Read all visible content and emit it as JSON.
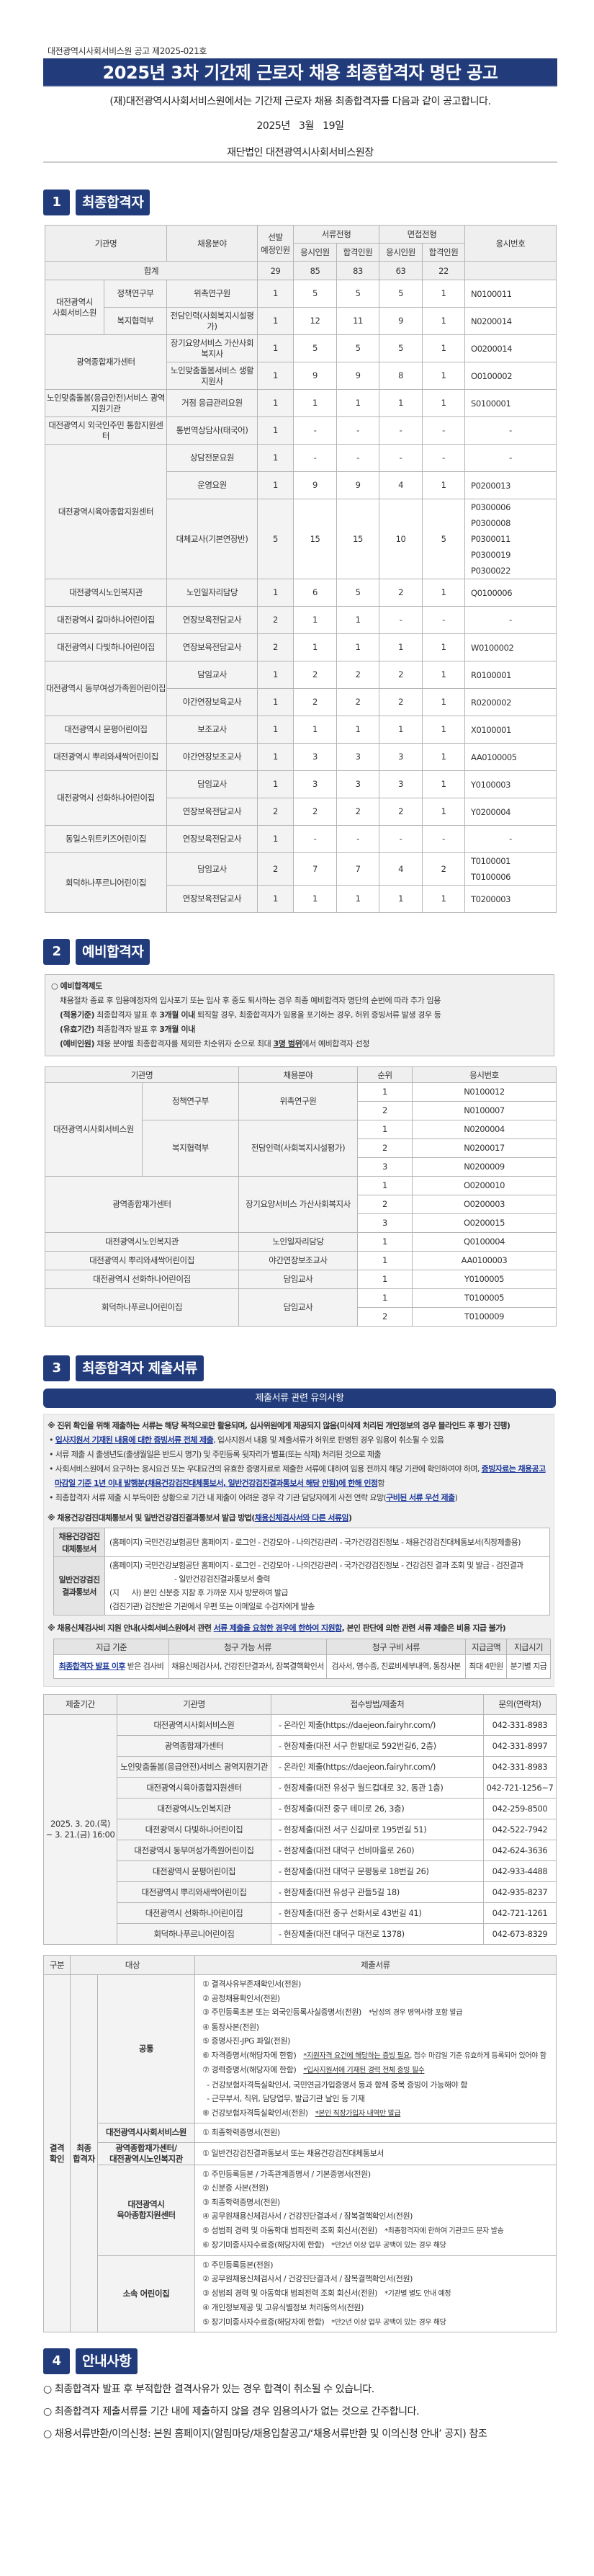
{
  "header": {
    "notice_number": "대전광역시사회서비스원 공고 제2025-021호",
    "title": "2025년 3차 기간제 근로자 채용 최종합격자 명단 공고",
    "intro": "(재)대전광역시사회서비스원에서는 기간제 근로자 채용 최종합격자를 다음과 같이 공고합니다.",
    "date": "2025년   3월   19일",
    "issuer": "재단법인 대전광역시사회서비스원장"
  },
  "sections": [
    {
      "number": "1",
      "title": "최종합격자"
    },
    {
      "number": "2",
      "title": "예비합격자"
    },
    {
      "number": "3",
      "title": "최종합격자 제출서류"
    },
    {
      "number": "4",
      "title": "안내사항"
    }
  ],
  "final": {
    "header": {
      "org": "기관명",
      "field": "채용분야",
      "planned": "선발\n예정인원",
      "doc_stage": "서류전형",
      "int_stage": "면접전형",
      "applied": "응시인원",
      "passed": "합격인원",
      "ids": "응시번호"
    },
    "total": {
      "label": "합계",
      "values": [
        "29",
        "85",
        "83",
        "63",
        "22"
      ]
    },
    "groups": [
      {
        "org": "대전광역시\n사회서비스원",
        "depts": [
          {
            "dept": "정책연구부",
            "rows": [
              {
                "field": "위촉연구원",
                "values": [
                  "1",
                  "5",
                  "5",
                  "5",
                  "1"
                ],
                "ids": "N0100011"
              }
            ]
          },
          {
            "dept": "복지협력부",
            "rows": [
              {
                "field": "전담인력(사회복지시설평가)",
                "values": [
                  "1",
                  "12",
                  "11",
                  "9",
                  "1"
                ],
                "ids": "N0200014"
              }
            ]
          }
        ]
      },
      {
        "org": "광역종합재가센터",
        "rows": [
          {
            "field": "장기요양서비스 가산사회복지사",
            "values": [
              "1",
              "5",
              "5",
              "5",
              "1"
            ],
            "ids": "O0200014"
          },
          {
            "field": "노인맞춤돌봄서비스 생활지원사",
            "values": [
              "1",
              "9",
              "9",
              "8",
              "1"
            ],
            "ids": "O0100002"
          }
        ]
      },
      {
        "org": "노인맞춤돌봄(응급안전)서비스 광역지원기관",
        "rows": [
          {
            "field": "거점 응급관리요원",
            "values": [
              "1",
              "1",
              "1",
              "1",
              "1"
            ],
            "ids": "S0100001"
          }
        ]
      },
      {
        "org": "대전광역시 외국인주민 통합지원센터",
        "rows": [
          {
            "field": "통번역상담사(태국어)",
            "values": [
              "1",
              "-",
              "-",
              "-",
              "-"
            ],
            "ids": "-"
          }
        ]
      },
      {
        "org": "대전광역시육아종합지원센터",
        "rows": [
          {
            "field": "상담전문요원",
            "values": [
              "1",
              "-",
              "-",
              "-",
              "-"
            ],
            "ids": "-"
          },
          {
            "field": "운영요원",
            "values": [
              "1",
              "9",
              "9",
              "4",
              "1"
            ],
            "ids": "P0200013"
          },
          {
            "field": "대체교사(기본연장반)",
            "values": [
              "5",
              "15",
              "15",
              "10",
              "5"
            ],
            "ids": "P0300006 P0300008 P0300011 P0300019 P0300022"
          }
        ]
      },
      {
        "org": "대전광역시노인복지관",
        "rows": [
          {
            "field": "노인일자리담당",
            "values": [
              "1",
              "6",
              "5",
              "2",
              "1"
            ],
            "ids": "Q0100006"
          }
        ]
      },
      {
        "org": "대전광역시 갈마하나어린이집",
        "rows": [
          {
            "field": "연장보육전담교사",
            "values": [
              "2",
              "1",
              "1",
              "-",
              "-"
            ],
            "ids": "-"
          }
        ]
      },
      {
        "org": "대전광역시 다빛하나어린이집",
        "rows": [
          {
            "field": "연장보육전담교사",
            "values": [
              "2",
              "1",
              "1",
              "1",
              "1"
            ],
            "ids": "W0100002"
          }
        ]
      },
      {
        "org": "대전광역시 동부여성가족원어린이집",
        "rows": [
          {
            "field": "담임교사",
            "values": [
              "1",
              "2",
              "2",
              "2",
              "1"
            ],
            "ids": "R0100001"
          },
          {
            "field": "야간연장보육교사",
            "values": [
              "1",
              "2",
              "2",
              "2",
              "1"
            ],
            "ids": "R0200002"
          }
        ]
      },
      {
        "org": "대전광역시 문평어린이집",
        "rows": [
          {
            "field": "보조교사",
            "values": [
              "1",
              "1",
              "1",
              "1",
              "1"
            ],
            "ids": "X0100001"
          }
        ]
      },
      {
        "org": "대전광역시 뿌리와새싹어린이집",
        "rows": [
          {
            "field": "야간연장보조교사",
            "values": [
              "1",
              "3",
              "3",
              "3",
              "1"
            ],
            "ids": "AA0100005"
          }
        ]
      },
      {
        "org": "대전광역시 선화하나어린이집",
        "rows": [
          {
            "field": "담임교사",
            "values": [
              "1",
              "3",
              "3",
              "3",
              "1"
            ],
            "ids": "Y0100003"
          },
          {
            "field": "연장보육전담교사",
            "values": [
              "2",
              "2",
              "2",
              "2",
              "1"
            ],
            "ids": "Y0200004"
          }
        ]
      },
      {
        "org": "동일스위트키즈어린이집",
        "rows": [
          {
            "field": "연장보육전담교사",
            "values": [
              "1",
              "-",
              "-",
              "-",
              "-"
            ],
            "ids": "-"
          }
        ]
      },
      {
        "org": "회덕하나푸르니어린이집",
        "rows": [
          {
            "field": "담임교사",
            "values": [
              "2",
              "7",
              "7",
              "4",
              "2"
            ],
            "ids": "T0100001 T0100006"
          },
          {
            "field": "연장보육전담교사",
            "values": [
              "1",
              "1",
              "1",
              "1",
              "1"
            ],
            "ids": "T0200003"
          }
        ]
      }
    ]
  },
  "reserve_notice": {
    "title": "○ 예비합격제도",
    "line1": "채용절차 종료 후 임용예정자의 입사포기 또는 입사 후 중도 퇴사하는 경우 최종 예비합격자 명단의 순번에 따라 추가 임용",
    "l2_label": "(적용기준)",
    "l2_a": " 최종합격자 발표 후 ",
    "l2_bold": "3개월 이내",
    "l2_b": " 퇴직할 경우, 최종합격자가 임용을 포기하는 경우, 허위 증빙서류 발생 경우 등",
    "l3_label": "(유효기간)",
    "l3_a": " 최종합격자 발표 후 ",
    "l3_bold": "3개월 이내",
    "l4_label": "(예비인원)",
    "l4_a": " 채용 분야별 최종합격자를 제외한 차순위자 순으로 최대 ",
    "l4_bold": "3명 범위",
    "l4_b": "에서 예비합격자 선정"
  },
  "reserve": {
    "header": {
      "org": "기관명",
      "field": "채용분야",
      "rank": "순위",
      "id": "응시번호"
    },
    "groups": [
      {
        "org": "대전광역시사회서비스원",
        "depts": [
          {
            "dept": "정책연구부",
            "field": "위촉연구원",
            "entries": [
              {
                "rank": "1",
                "id": "N0100012"
              },
              {
                "rank": "2",
                "id": "N0100007"
              }
            ]
          },
          {
            "dept": "복지협력부",
            "field": "전담인력(사회복지시설평가)",
            "entries": [
              {
                "rank": "1",
                "id": "N0200004"
              },
              {
                "rank": "2",
                "id": "N0200017"
              },
              {
                "rank": "3",
                "id": "N0200009"
              }
            ]
          }
        ]
      },
      {
        "org": "광역종합재가센터",
        "field": "장기요양서비스 가산사회복지사",
        "entries": [
          {
            "rank": "1",
            "id": "O0200010"
          },
          {
            "rank": "2",
            "id": "O0200003"
          },
          {
            "rank": "3",
            "id": "O0200015"
          }
        ]
      },
      {
        "org": "대전광역시노인복지관",
        "field": "노인일자리담당",
        "entries": [
          {
            "rank": "1",
            "id": "Q0100004"
          }
        ]
      },
      {
        "org": "대전광역시 뿌리와새싹어린이집",
        "field": "야간연장보조교사",
        "entries": [
          {
            "rank": "1",
            "id": "AA0100003"
          }
        ]
      },
      {
        "org": "대전광역시 선화하나어린이집",
        "field": "담임교사",
        "entries": [
          {
            "rank": "1",
            "id": "Y0100005"
          }
        ]
      },
      {
        "org": "회덕하나푸르니어린이집",
        "field": "담임교사",
        "entries": [
          {
            "rank": "1",
            "id": "T0100005"
          },
          {
            "rank": "2",
            "id": "T0100009"
          }
        ]
      }
    ]
  },
  "docs_notice": {
    "bar_title": "제출서류 관련 유의사항",
    "p1": "※ 진위 확인을 위해 제출하는 서류는 해당 목적으로만 활용되며, 심사위원에게 제공되지 않음(미삭제 처리된 개인정보의 경우 블라인드 후 평가 진행)",
    "b1_link": "입사지원서 기재된 내용에 대한 증빙서류 전체 제출",
    "b1_rest": ", 입사지원서 내용 및 제출서류가 허위로 판명된 경우 임용이 취소될 수 있음",
    "b2": "서류 제출 시 출생년도(출생월일은 반드시 명기) 및 주민등록 뒷자리가 별표(또는 삭제) 처리된 것으로 제출",
    "b3_a": "사회서비스원에서 요구하는 응시요건 또는 우대요건의 유효한 증명자료로 제출한 서류에 대하여 임용 전까지 해당 기관에 확인하여야 하며, ",
    "b3_link": "증빙자료는 채용공고 마감일 기준 1년 이내 발행분(채용건강검진대체통보서, 일반건강검진결과통보서 해당 안됨)에 한해 인정",
    "b3_b": "함",
    "b4_a": "최종합격자 서류 제출 시 부득이한 상황으로 기간 내 제출이 어려운 경우 각 기관 담당자에게 사전 연락 요망(",
    "b4_link": "구비된 서류 우선 제출",
    "b4_b": ")",
    "health_title_a": "※ 채용건강검진대체통보서 및 일반건강검진결과통보서 발급 방법(",
    "health_title_link": "채용신체검사서와 다른 서류임",
    "health_title_b": ")",
    "health_rows": [
      {
        "label": "채용건강검진\n대체통보서",
        "lines": [
          "(홈페이지) 국민건강보험공단 홈페이지 - 로그인 - 건강모아 - 나의건강관리 - 국가건강검진정보 - 채용건강검진대체통보서(직장제출용)"
        ]
      },
      {
        "label": "일반건강검진\n결과통보서",
        "lines": [
          "(홈페이지) 국민건강보험공단 홈페이지 - 로그인 - 건강모아 - 나의건강관리 - 국가건강검진정보 - 건강검진 결과 조회 및 발급 - 검진결과",
          "- 일반건강검진결과통보서 출력",
          "(지      사) 본인 신분증 지참 후 가까운 지사 방문하여 발급",
          "(검진기관) 검진받은 기관에서 우편 또는 이메일로 수검자에게 발송"
        ]
      }
    ],
    "med_title_a": "※ 채용신체검사비 지원 안내(사회서비스원에서 관련 ",
    "med_title_u": "서류 제출을 요청한 경우에 한하여 지원함",
    "med_title_b": ", 본인 판단에 의한 관련 서류 제출은 비용 지급 불가)",
    "med_header": [
      "지급 기준",
      "청구 가능 서류",
      "청구 구비 서류",
      "지급금액",
      "지급시기"
    ],
    "med_row": {
      "basis_link": "최종합격자 발표 이후",
      "basis_rest": " 받은 검사비",
      "eligible": "채용신체검사서, 건강진단결과서, 잠복결핵확인서",
      "required": "검사서, 영수증, 진료비세부내역, 통장사본",
      "amount": "최대 4만원",
      "timing": "분기별 지급"
    }
  },
  "submission": {
    "header": [
      "제출기간",
      "기관명",
      "접수방법/제출처",
      "문의(연락처)"
    ],
    "period": "2025. 3. 20.(목)\n~ 3. 21.(금) 16:00",
    "rows": [
      {
        "org": "대전광역시사회서비스원",
        "method": "-  온라인 제출(https://daejeon.fairyhr.com/)",
        "contact": "042-331-8983"
      },
      {
        "org": "광역종합재가센터",
        "method": "-  현장제출(대전 서구 한밭대로 592번길6, 2층)",
        "contact": "042-331-8997"
      },
      {
        "org": "노인맞춤돌봄(응급안전)서비스 광역지원기관",
        "method": "-  온라인 제출(https://daejeon.fairyhr.com/)",
        "contact": "042-331-8983"
      },
      {
        "org": "대전광역시육아종합지원센터",
        "method": "-  현장제출(대전 유성구 월드컵대로 32, 동관 1층)",
        "contact": "042-721-1256~7"
      },
      {
        "org": "대전광역시노인복지관",
        "method": "-  현장제출(대전 중구 테미로 26, 3층)",
        "contact": "042-259-8500"
      },
      {
        "org": "대전광역시 다빛하나어린이집",
        "method": "-  현장제출(대전 서구 신갈마로 195번길 51)",
        "contact": "042-522-7942"
      },
      {
        "org": "대전광역시 동부여성가족원어린이집",
        "method": "-  현장제출(대전 대덕구 선비마을로 260)",
        "contact": "042-624-3636"
      },
      {
        "org": "대전광역시 문평어린이집",
        "method": "-  현장제출(대전 대덕구 문평동로 18번길 26)",
        "contact": "042-933-4488"
      },
      {
        "org": "대전광역시 뿌리와새싹어린이집",
        "method": "-  현장제출(대전 유성구 관들5길 18)",
        "contact": "042-935-8237"
      },
      {
        "org": "대전광역시 선화하나어린이집",
        "method": "-  현장제출(대전 중구 선화서로 43번길 41)",
        "contact": "042-721-1261"
      },
      {
        "org": "회덕하나푸르니어린이집",
        "method": "-  현장제출(대전 대덕구 대전로 1378)",
        "contact": "042-673-8329"
      }
    ]
  },
  "documents": {
    "header": {
      "category": "구분",
      "target": "대상",
      "docs": "제출서류"
    },
    "category": "결격\n확인",
    "target": "최종\n합격자",
    "groups": [
      {
        "target": "공통",
        "items": [
          {
            "text": "① 결격사유부존재확인서(전원)"
          },
          {
            "text": "② 공정채용확인서(전원)"
          },
          {
            "text": "③ 주민등록초본 또는 외국인등록사실증명서(전원)",
            "note": "*남성의 경우 병역사항 포함 발급"
          },
          {
            "text": "④ 통장사본(전원)"
          },
          {
            "text": "⑤ 증명사진-JPG 파일(전원)"
          },
          {
            "text": "⑥ 자격증명서(해당자에 한함)",
            "note_u": "*지원자격 요건에 해당하는 증빙 필요",
            "note": ", 접수 마감일 기준 유효하게 등록되어 있어야 함"
          },
          {
            "text": "⑦ 경력증명서(해당자에 한함)",
            "note_u": "*입사지원서에 기재된 경력 전체 증빙 필수"
          },
          {
            "text": "  - 건강보험자격득실확인서, 국민연금가입증명서 등과 함께 중복 증빙이 가능해야 함"
          },
          {
            "text": "  - 근무부서, 직위, 담당업무, 발급기관 날인 등 기재"
          },
          {
            "text": "⑧ 건강보험자격득실확인서(전원)",
            "note_u": "*본인 직장가입자 내역만 발급"
          }
        ]
      },
      {
        "target": "대전광역시사회서비스원",
        "items": [
          {
            "text": "① 최종학력증명서(전원)"
          }
        ]
      },
      {
        "target": "광역종합재가센터/\n대전광역시노인복지관",
        "items": [
          {
            "text": "① 일반건강검진결과통보서 또는 채용건강검진대체통보서"
          }
        ]
      },
      {
        "target": "대전광역시\n육아종합지원센터",
        "items": [
          {
            "text": "① 주민등록등본 / 가족관계증명서 / 기본증명서(전원)"
          },
          {
            "text": "② 신분증 사본(전원)"
          },
          {
            "text": "③ 최종학력증명서(전원)"
          },
          {
            "text": "④ 공무원채용신체검사서 / 건강진단결과서 / 잠복결핵확인서(전원)"
          },
          {
            "text": "⑤ 성범죄 경력 및 아동학대 범죄전력 조회 회신서(전원)",
            "note": "*최종합격자에 한하여 기관코드 문자 발송"
          },
          {
            "text": "⑥ 장기미종사자수료증(해당자에 한함)",
            "note": "*만2년 이상 업무 공백이 있는 경우 해당"
          }
        ]
      },
      {
        "target": "소속 어린이집",
        "items": [
          {
            "text": "① 주민등록등본(전원)"
          },
          {
            "text": "② 공무원채용신체검사서 / 건강진단결과서 / 잠복결핵확인서(전원)"
          },
          {
            "text": "③ 성범죄 경력 및 아동학대 범죄전력 조회 회신서(전원)",
            "note": "*기관별 별도 안내 예정"
          },
          {
            "text": "④ 개인정보제공 및 고유식별정보 처리동의서(전원)"
          },
          {
            "text": "⑤ 장기미종사자수료증(해당자에 한함)",
            "note": "*만2년 이상 업무 공백이 있는 경우 해당"
          }
        ]
      }
    ]
  },
  "info": [
    "○ 최종합격자 발표 후 부적합한 결격사유가 있는 경우 합격이 취소될 수 있습니다.",
    "○ 최종합격자 제출서류를 기간 내에 제출하지 않을 경우 임용의사가 없는 것으로 간주합니다.",
    "○ 채용서류반환/이의신청: 본원 홈페이지(알림마당/채용입찰공고/‘채용서류반환 및 이의신청 안내’ 공지) 참조"
  ],
  "colors": {
    "brand_navy": "#213b7b",
    "link_blue": "#1f3a9a",
    "header_gray": "#efefef"
  }
}
